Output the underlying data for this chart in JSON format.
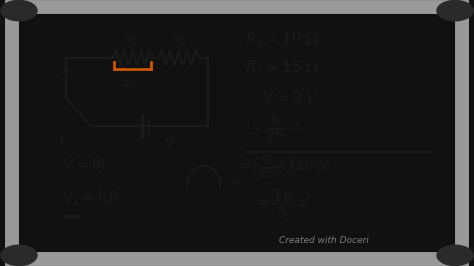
{
  "bg_dark": "#111111",
  "frame_outer": "#888888",
  "frame_mid": "#aaaaaa",
  "whiteboard": "#efefed",
  "text_color": "#1a1a1a",
  "orange_color": "#cc5500",
  "corner_color": "#2a2a2a",
  "watermark": "Created with Doceri",
  "r1_label": "$R_1$",
  "r2_label": "$R_2$",
  "eq1": "$R_1 = 10\\,\\Omega$",
  "eq2": "$R_2 = 15\\,\\Omega$",
  "eq3": "$V = 9\\,V$",
  "eq4": "$I = \\dfrac{9}{25}\\,A$",
  "eq5": "$V = IR$",
  "eq6": "$V_1 = I_1 R_1$",
  "eq7": "$= \\left(\\dfrac{9}{25}A\\right)\\left(10\\,\\Omega\\right)$",
  "eq8": "$= \\dfrac{18}{5}\\,V$",
  "frac_label": "$\\frac{18}{5}V$"
}
